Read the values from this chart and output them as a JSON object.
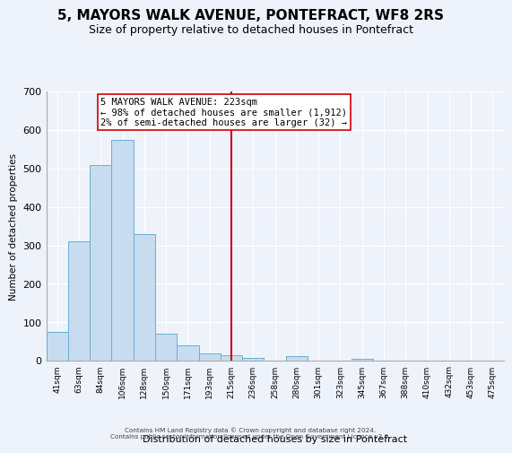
{
  "title": "5, MAYORS WALK AVENUE, PONTEFRACT, WF8 2RS",
  "subtitle": "Size of property relative to detached houses in Pontefract",
  "xlabel": "Distribution of detached houses by size in Pontefract",
  "ylabel": "Number of detached properties",
  "bar_labels": [
    "41sqm",
    "63sqm",
    "84sqm",
    "106sqm",
    "128sqm",
    "150sqm",
    "171sqm",
    "193sqm",
    "215sqm",
    "236sqm",
    "258sqm",
    "280sqm",
    "301sqm",
    "323sqm",
    "345sqm",
    "367sqm",
    "388sqm",
    "410sqm",
    "432sqm",
    "453sqm",
    "475sqm"
  ],
  "bar_values": [
    75,
    310,
    510,
    575,
    330,
    70,
    40,
    20,
    15,
    8,
    0,
    12,
    0,
    0,
    5,
    0,
    0,
    0,
    0,
    0,
    0
  ],
  "bar_color": "#c8dcef",
  "bar_edge_color": "#6aaed6",
  "vline_x_index": 8,
  "vline_color": "#cc0000",
  "annotation_title": "5 MAYORS WALK AVENUE: 223sqm",
  "annotation_line1": "← 98% of detached houses are smaller (1,912)",
  "annotation_line2": "2% of semi-detached houses are larger (32) →",
  "annotation_box_facecolor": "white",
  "annotation_box_edgecolor": "#cc0000",
  "ylim": [
    0,
    700
  ],
  "yticks": [
    0,
    100,
    200,
    300,
    400,
    500,
    600,
    700
  ],
  "footer_line1": "Contains HM Land Registry data © Crown copyright and database right 2024.",
  "footer_line2": "Contains public sector information licensed under the Open Government Licence v3.0.",
  "background_color": "#eef2fb",
  "grid_color": "#ffffff",
  "title_fontsize": 11,
  "subtitle_fontsize": 9
}
